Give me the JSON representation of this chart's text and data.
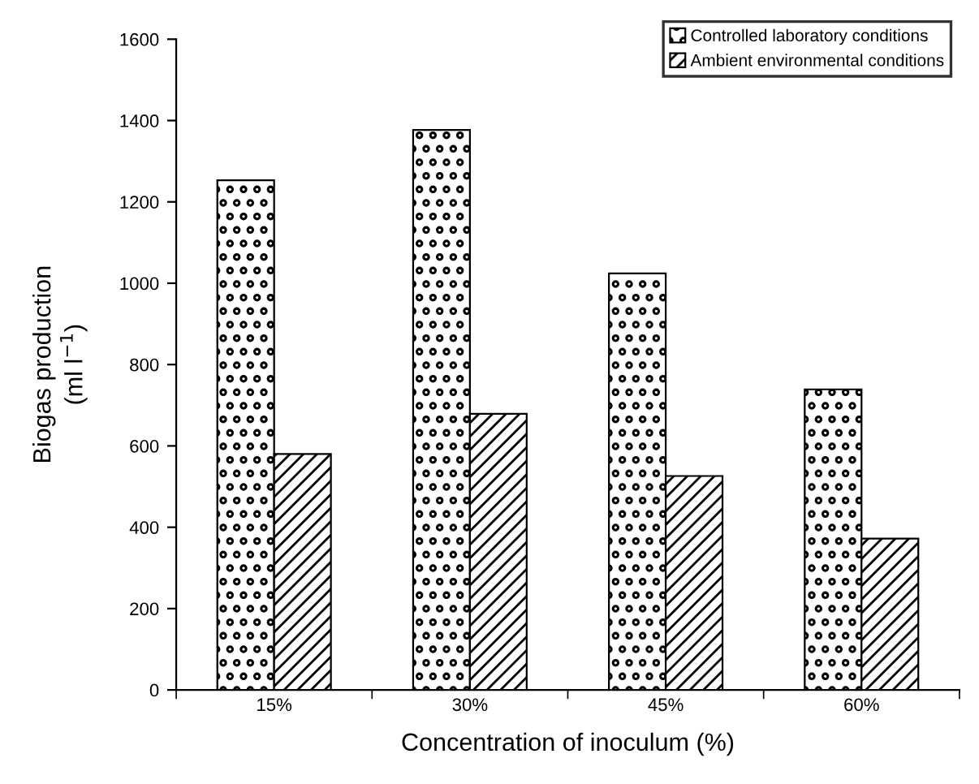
{
  "chart_data": {
    "type": "bar",
    "xlabel": "Concentration of inoculum (%)",
    "ylabel": "Biogas production\n(ml l$^{−1}$)",
    "categories": [
      "15%",
      "30%",
      "45%",
      "60%"
    ],
    "series": [
      {
        "name": "Controlled laboratory conditions",
        "color": "#000000",
        "values": [
          1253,
          1377,
          1024,
          739
        ]
      },
      {
        "name": "Ambient environmental conditions",
        "color": "#000000",
        "values": [
          580,
          679,
          526,
          372
        ]
      }
    ],
    "ylim": [
      0,
      1600
    ],
    "yticks": [
      0,
      200,
      400,
      600,
      800,
      1000,
      1200,
      1400,
      1600
    ],
    "grid": false,
    "legend": "top right"
  }
}
